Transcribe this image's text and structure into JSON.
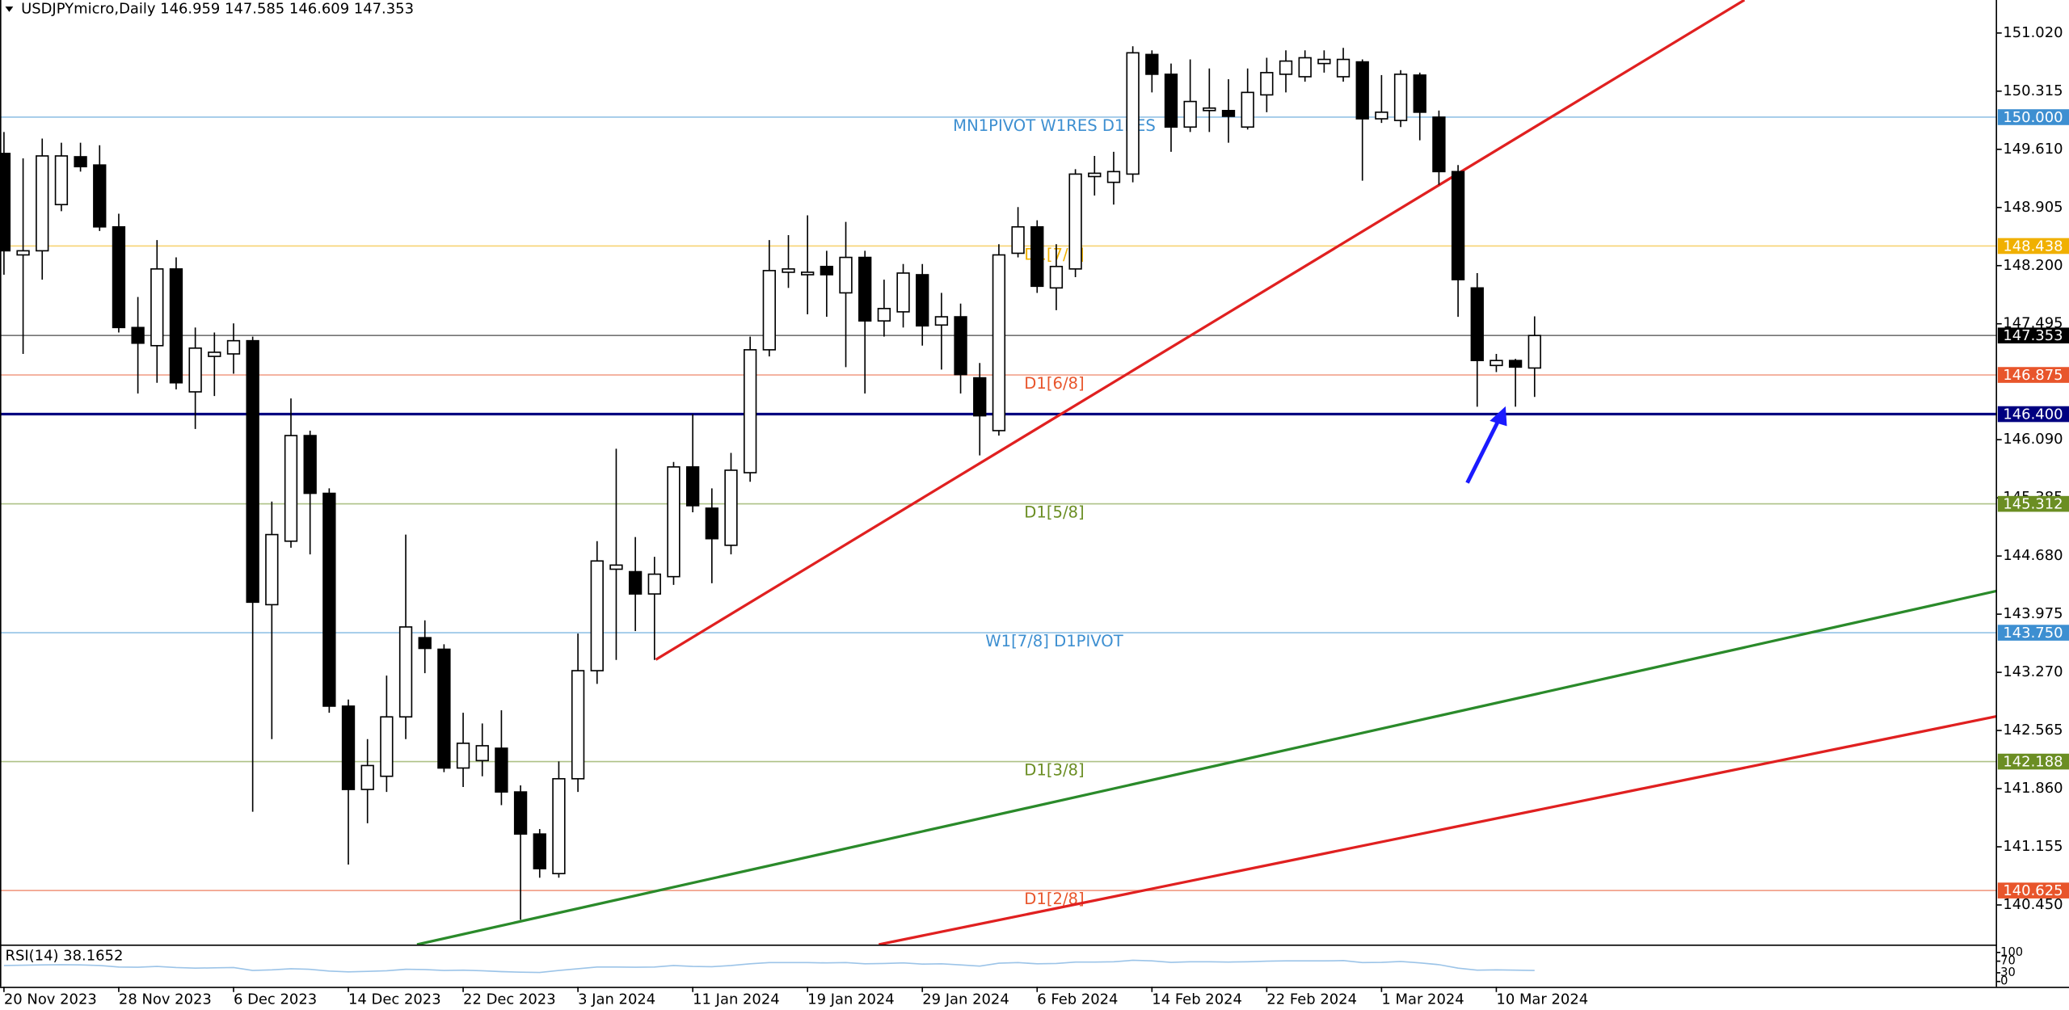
{
  "chart_data": {
    "type": "candlestick",
    "title": "USDJPYmicro,Daily  146.959 147.585 146.609 147.353",
    "categories": [
      "20 Nov 2023",
      null,
      null,
      null,
      null,
      null,
      "28 Nov 2023",
      null,
      null,
      null,
      null,
      null,
      "6 Dec 2023",
      null,
      null,
      null,
      null,
      null,
      "14 Dec 2023",
      null,
      null,
      null,
      null,
      null,
      "22 Dec 2023",
      null,
      null,
      null,
      null,
      null,
      "3 Jan 2024",
      null,
      null,
      null,
      null,
      null,
      "11 Jan 2024",
      null,
      null,
      null,
      null,
      null,
      "19 Jan 2024",
      null,
      null,
      null,
      null,
      null,
      "29 Jan 2024",
      null,
      null,
      null,
      null,
      null,
      "6 Feb 2024",
      null,
      null,
      null,
      null,
      null,
      "14 Feb 2024",
      null,
      null,
      null,
      null,
      null,
      "22 Feb 2024",
      null,
      null,
      null,
      null,
      null,
      "1 Mar 2024",
      null,
      null,
      null,
      null,
      null,
      "10 Mar 2024",
      null,
      null
    ],
    "open": [
      149.56,
      148.33,
      148.38,
      148.94,
      149.52,
      149.42,
      148.67,
      147.45,
      147.23,
      148.16,
      146.67,
      147.1,
      147.13,
      147.29,
      144.09,
      144.86,
      146.14,
      145.44,
      142.86,
      141.85,
      142.01,
      142.73,
      143.69,
      143.55,
      142.11,
      142.2,
      142.35,
      141.82,
      141.31,
      140.83,
      141.98,
      143.29,
      144.52,
      144.49,
      144.22,
      144.43,
      145.76,
      145.26,
      144.81,
      145.69,
      147.18,
      148.12,
      148.09,
      148.19,
      147.87,
      148.3,
      147.53,
      147.64,
      148.09,
      147.48,
      147.58,
      146.84,
      146.2,
      148.35,
      148.67,
      147.93,
      148.16,
      149.28,
      149.21,
      149.31,
      150.76,
      150.52,
      149.88,
      150.08,
      150.08,
      149.88,
      150.27,
      150.52,
      150.49,
      150.65,
      150.49,
      150.67,
      149.98,
      149.96,
      150.51,
      150.0,
      149.34,
      147.93,
      146.99,
      147.05,
      146.959
    ],
    "high": [
      149.82,
      149.5,
      149.74,
      149.69,
      149.69,
      149.66,
      148.83,
      147.82,
      148.51,
      148.3,
      147.45,
      147.39,
      147.5,
      147.34,
      145.34,
      146.59,
      146.2,
      145.5,
      142.94,
      142.46,
      143.23,
      144.94,
      143.9,
      143.61,
      142.78,
      142.65,
      142.81,
      141.9,
      141.37,
      142.19,
      143.74,
      144.86,
      145.98,
      144.91,
      144.67,
      145.82,
      146.4,
      145.5,
      145.93,
      147.34,
      148.51,
      148.57,
      148.81,
      148.38,
      148.73,
      148.38,
      148.03,
      148.22,
      148.22,
      147.87,
      147.74,
      147.02,
      148.46,
      148.91,
      148.75,
      148.46,
      149.37,
      149.53,
      149.58,
      150.86,
      150.81,
      150.65,
      150.7,
      150.59,
      150.46,
      150.59,
      150.72,
      150.81,
      150.81,
      150.81,
      150.84,
      150.7,
      150.51,
      150.57,
      150.54,
      150.08,
      149.42,
      148.11,
      147.13,
      147.07,
      147.585
    ],
    "low": [
      148.09,
      147.13,
      148.03,
      148.86,
      149.34,
      148.62,
      147.39,
      146.65,
      146.78,
      146.7,
      146.22,
      146.62,
      146.89,
      141.58,
      142.46,
      144.78,
      144.7,
      142.78,
      140.94,
      141.44,
      141.82,
      142.46,
      143.26,
      142.06,
      141.88,
      142.01,
      141.66,
      140.27,
      140.78,
      140.78,
      141.82,
      143.13,
      143.42,
      143.77,
      143.42,
      144.33,
      145.21,
      144.35,
      144.7,
      145.58,
      147.1,
      147.93,
      147.61,
      147.58,
      146.97,
      146.65,
      147.34,
      147.45,
      147.23,
      146.94,
      146.65,
      145.9,
      146.14,
      148.3,
      147.87,
      147.66,
      148.06,
      149.05,
      148.94,
      149.21,
      150.3,
      149.58,
      149.82,
      149.82,
      149.69,
      149.85,
      150.06,
      150.3,
      150.43,
      150.54,
      150.43,
      149.23,
      149.93,
      149.88,
      149.72,
      149.18,
      147.58,
      146.49,
      146.91,
      146.49,
      146.609
    ],
    "close": [
      148.38,
      148.38,
      149.53,
      149.53,
      149.4,
      148.67,
      147.45,
      147.26,
      148.16,
      146.78,
      147.2,
      147.15,
      147.29,
      144.12,
      144.94,
      146.14,
      145.44,
      142.86,
      141.85,
      142.14,
      142.73,
      143.82,
      143.56,
      142.11,
      142.41,
      142.38,
      141.82,
      141.31,
      140.89,
      141.98,
      143.29,
      144.62,
      144.57,
      144.22,
      144.46,
      145.76,
      145.29,
      144.89,
      145.72,
      147.18,
      148.14,
      148.16,
      148.12,
      148.09,
      148.3,
      147.53,
      147.68,
      148.11,
      147.47,
      147.58,
      146.88,
      146.38,
      148.33,
      148.67,
      147.95,
      148.19,
      149.31,
      149.32,
      149.34,
      150.78,
      150.52,
      149.88,
      150.19,
      150.11,
      150.01,
      150.3,
      150.54,
      150.68,
      150.72,
      150.7,
      150.7,
      149.98,
      150.06,
      150.52,
      150.06,
      149.34,
      148.03,
      147.05,
      147.05,
      146.97,
      147.353
    ],
    "up_color": "#ffffff",
    "down_color": "#000000",
    "ylim": [
      139.97,
      151.42
    ],
    "yticks": [
      {
        "value": 151.02,
        "label": "151.020"
      },
      {
        "value": 150.315,
        "label": "150.315"
      },
      {
        "value": 149.61,
        "label": "149.610"
      },
      {
        "value": 148.905,
        "label": "148.905"
      },
      {
        "value": 148.2,
        "label": "148.200"
      },
      {
        "value": 147.495,
        "label": "147.495"
      },
      {
        "value": 146.09,
        "label": "146.090"
      },
      {
        "value": 145.385,
        "label": "145.385"
      },
      {
        "value": 144.68,
        "label": "144.680"
      },
      {
        "value": 143.975,
        "label": "143.975"
      },
      {
        "value": 143.27,
        "label": "143.270"
      },
      {
        "value": 142.565,
        "label": "142.565"
      },
      {
        "value": 141.86,
        "label": "141.860"
      },
      {
        "value": 141.155,
        "label": "141.155"
      },
      {
        "value": 140.45,
        "label": "140.450"
      }
    ],
    "levels": [
      {
        "value": 150.0,
        "label": "150.000",
        "name": "MN1PIVOT W1RES D1RES",
        "color": "#3d8fd1"
      },
      {
        "value": 148.438,
        "label": "148.438",
        "name": "D1[7/8]",
        "color": "#f0b000"
      },
      {
        "value": 147.353,
        "label": "147.353",
        "color": "#000000"
      },
      {
        "value": 146.875,
        "label": "146.875",
        "name": "D1[6/8]",
        "color": "#e8552b"
      },
      {
        "value": 146.4,
        "label": "146.400",
        "color": "#000080",
        "line_width": 2
      },
      {
        "value": 145.312,
        "label": "145.312",
        "name": "D1[5/8]",
        "color": "#6b8e23"
      },
      {
        "value": 143.75,
        "label": "143.750",
        "name": "W1[7/8] D1PIVOT",
        "color": "#3d8fd1"
      },
      {
        "value": 142.188,
        "label": "142.188",
        "name": "D1[3/8]",
        "color": "#6b8e23"
      },
      {
        "value": 140.625,
        "label": "140.625",
        "name": "D1[2/8]",
        "color": "#e8552b"
      }
    ],
    "rsi": {
      "title": "RSI(14) 38.1652",
      "color": "#9cc4e8",
      "ylim": [
        0,
        100
      ],
      "yticks": [
        0,
        30,
        70,
        100
      ],
      "values": [
        55,
        56,
        57,
        58,
        57,
        55,
        50,
        49,
        52,
        48,
        46,
        47,
        48,
        38,
        40,
        44,
        42,
        36,
        33,
        35,
        37,
        42,
        41,
        38,
        39,
        37,
        34,
        32,
        31,
        38,
        44,
        50,
        50,
        49,
        50,
        55,
        52,
        51,
        55,
        61,
        65,
        65,
        65,
        64,
        65,
        61,
        62,
        64,
        60,
        61,
        57,
        53,
        63,
        65,
        61,
        62,
        67,
        67,
        68,
        73,
        71,
        66,
        68,
        68,
        67,
        68,
        70,
        71,
        71,
        71,
        72,
        65,
        66,
        69,
        64,
        58,
        46,
        39,
        40,
        39,
        38.1652
      ]
    }
  }
}
